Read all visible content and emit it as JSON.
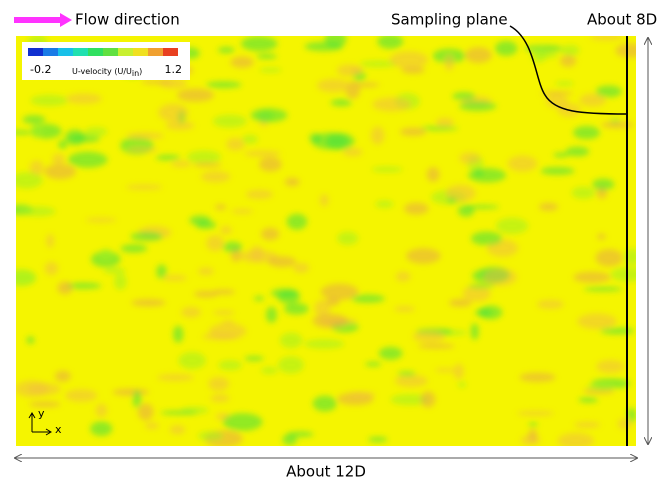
{
  "annotations": {
    "flow": "Flow direction",
    "sampling": "Sampling plane",
    "height": "About 8D",
    "length": "About 12D"
  },
  "colorbar": {
    "min": "-0.2",
    "max": "1.2",
    "label_main": "U-velocity (U/U",
    "label_sub": "in",
    "label_end": ")"
  },
  "axes": {
    "y": "y",
    "x": "x"
  }
}
